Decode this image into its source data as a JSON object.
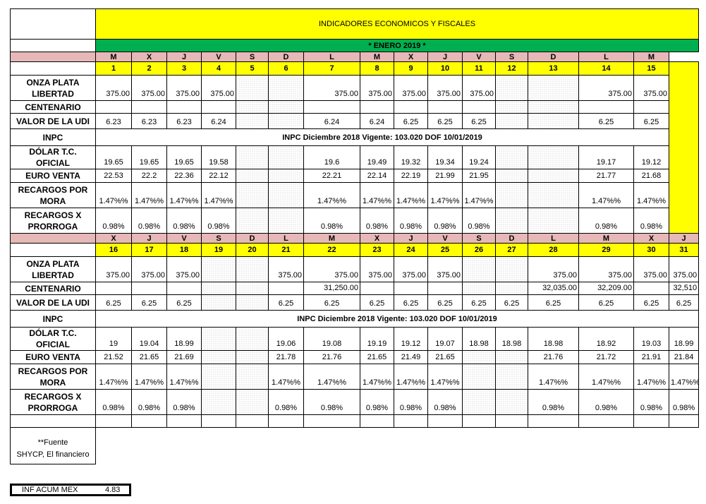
{
  "title": "INDICADORES ECONOMICOS Y FISCALES",
  "month": "* ENERO 2019 *",
  "labels": {
    "onza": "ONZA PLATA LIBERTAD",
    "centenario": "CENTENARIO",
    "udi": "VALOR DE LA UDI",
    "inpc": "INPC",
    "dolar": "DÓLAR T.C. OFICIAL",
    "euro": "EURO VENTA",
    "mora": "RECARGOS POR MORA",
    "prorroga": "RECARGOS X PRORROGA"
  },
  "source": [
    "**Fuente",
    "SHYCP, El financiero"
  ],
  "inf_acum": {
    "label": "INF ACUM MEX",
    "value": "4.83"
  },
  "blocks": [
    {
      "weekdays": [
        "M",
        "X",
        "J",
        "V",
        "S",
        "D",
        "L",
        "M",
        "X",
        "J",
        "V",
        "S",
        "D",
        "L",
        "M"
      ],
      "days": [
        "1",
        "2",
        "3",
        "4",
        "5",
        "6",
        "7",
        "8",
        "9",
        "10",
        "11",
        "12",
        "13",
        "14",
        "15"
      ],
      "inpc_note": "INPC Diciembre 2018 Vigente: 103.020 DOF 10/01/2019",
      "onza": [
        "375.00",
        "375.00",
        "375.00",
        "375.00",
        "",
        "",
        "375.00",
        "375.00",
        "375.00",
        "375.00",
        "375.00",
        "",
        "",
        "375.00",
        "375.00"
      ],
      "centenario": [
        "",
        "",
        "",
        "",
        "",
        "",
        "",
        "",
        "",
        "",
        "",
        "",
        "",
        "",
        ""
      ],
      "udi": [
        "6.23",
        "6.23",
        "6.23",
        "6.24",
        "",
        "",
        "6.24",
        "6.24",
        "6.25",
        "6.25",
        "6.25",
        "",
        "",
        "6.25",
        "6.25"
      ],
      "dolar": [
        "19.65",
        "19.65",
        "19.65",
        "19.58",
        "",
        "",
        "19.6",
        "19.49",
        "19.32",
        "19.34",
        "19.24",
        "",
        "",
        "19.17",
        "19.12"
      ],
      "euro": [
        "22.53",
        "22.2",
        "22.36",
        "22.12",
        "",
        "",
        "22.21",
        "22.14",
        "22.19",
        "21.99",
        "21.95",
        "",
        "",
        "21.77",
        "21.68"
      ],
      "mora": [
        "1.47%%",
        "1.47%%",
        "1.47%%",
        "1.47%%",
        "",
        "",
        "1.47%%",
        "1.47%%",
        "1.47%%",
        "1.47%%",
        "1.47%%",
        "",
        "",
        "1.47%%",
        "1.47%%"
      ],
      "prorroga": [
        "0.98%",
        "0.98%",
        "0.98%",
        "0.98%",
        "",
        "",
        "0.98%",
        "0.98%",
        "0.98%",
        "0.98%",
        "0.98%",
        "",
        "",
        "0.98%",
        "0.98%"
      ]
    },
    {
      "weekdays": [
        "X",
        "J",
        "V",
        "S",
        "D",
        "L",
        "M",
        "X",
        "J",
        "V",
        "S",
        "D",
        "L",
        "M",
        "X",
        "J"
      ],
      "days": [
        "16",
        "17",
        "18",
        "19",
        "20",
        "21",
        "22",
        "23",
        "24",
        "25",
        "26",
        "27",
        "28",
        "29",
        "30",
        "31"
      ],
      "inpc_note": "INPC Diciembre 2018 Vigente: 103.020 DOF 10/01/2019",
      "onza": [
        "375.00",
        "375.00",
        "375.00",
        "",
        "",
        "375.00",
        "375.00",
        "375.00",
        "375.00",
        "375.00",
        "",
        "",
        "375.00",
        "375.00",
        "375.00",
        "375.00"
      ],
      "centenario": [
        "",
        "",
        "",
        "",
        "",
        "",
        "31,250.00",
        "",
        "",
        "",
        "",
        "",
        "32,035.00",
        "32,209.00",
        "",
        "32,510"
      ],
      "udi": [
        "6.25",
        "6.25",
        "6.25",
        "",
        "",
        "6.25",
        "6.25",
        "6.25",
        "6.25",
        "6.25",
        "6.25",
        "6.25",
        "6.25",
        "6.25",
        "6.25",
        "6.25"
      ],
      "dolar": [
        "19",
        "19.04",
        "18.99",
        "",
        "",
        "19.06",
        "19.08",
        "19.19",
        "19.12",
        "19.07",
        "18.98",
        "18.98",
        "18.98",
        "18.92",
        "19.03",
        "18.99"
      ],
      "euro": [
        "21.52",
        "21.65",
        "21.69",
        "",
        "",
        "21.78",
        "21.76",
        "21.65",
        "21.49",
        "21.65",
        "",
        "",
        "21.76",
        "21.72",
        "21.91",
        "21.84"
      ],
      "mora": [
        "1.47%%",
        "1.47%%",
        "1.47%%",
        "",
        "",
        "1.47%%",
        "1.47%%",
        "1.47%%",
        "1.47%%",
        "1.47%%",
        "",
        "",
        "1.47%%",
        "1.47%%",
        "1.47%%",
        "1.47%%"
      ],
      "prorroga": [
        "0.98%",
        "0.98%",
        "0.98%",
        "",
        "",
        "0.98%",
        "0.98%",
        "0.98%",
        "0.98%",
        "0.98%",
        "",
        "",
        "0.98%",
        "0.98%",
        "0.98%",
        "0.98%"
      ]
    }
  ]
}
